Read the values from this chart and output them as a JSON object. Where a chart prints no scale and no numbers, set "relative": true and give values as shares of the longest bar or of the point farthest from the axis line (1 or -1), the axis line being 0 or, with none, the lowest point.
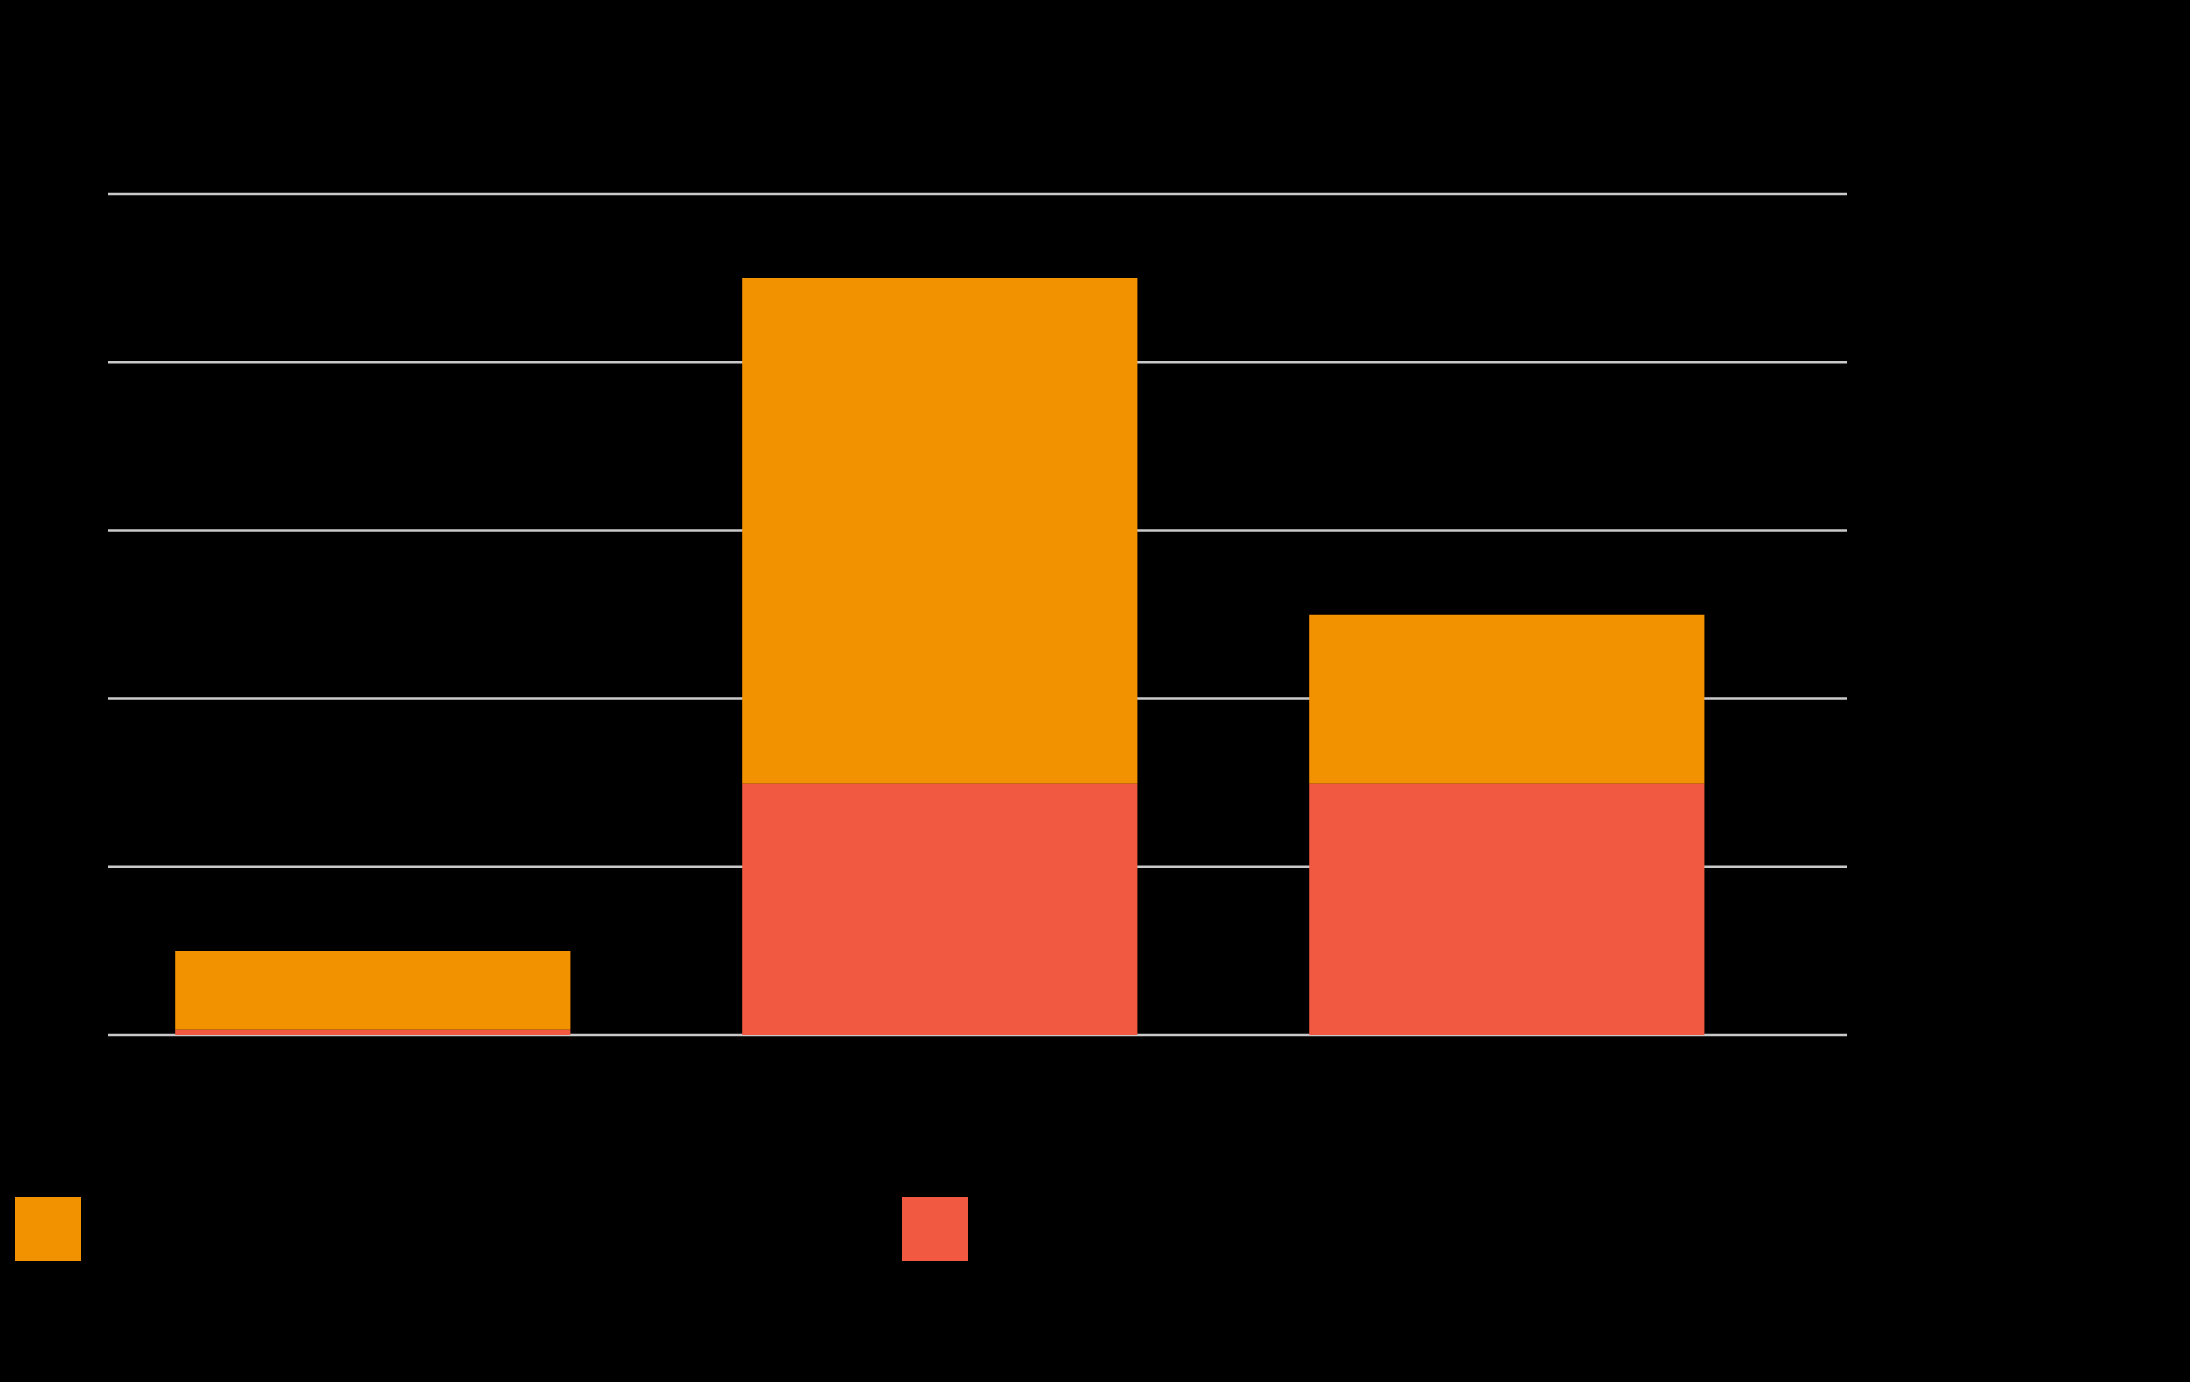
{
  "chart_data": {
    "type": "bar",
    "stacked": true,
    "relative": true,
    "grid": "y",
    "categories": [
      null,
      null,
      null
    ],
    "series": [
      {
        "color": "#f15a40",
        "values": [
          0.007,
          0.332,
          0.332
        ]
      },
      {
        "color": "#f39200",
        "values": [
          0.104,
          0.668,
          0.223
        ]
      }
    ]
  }
}
